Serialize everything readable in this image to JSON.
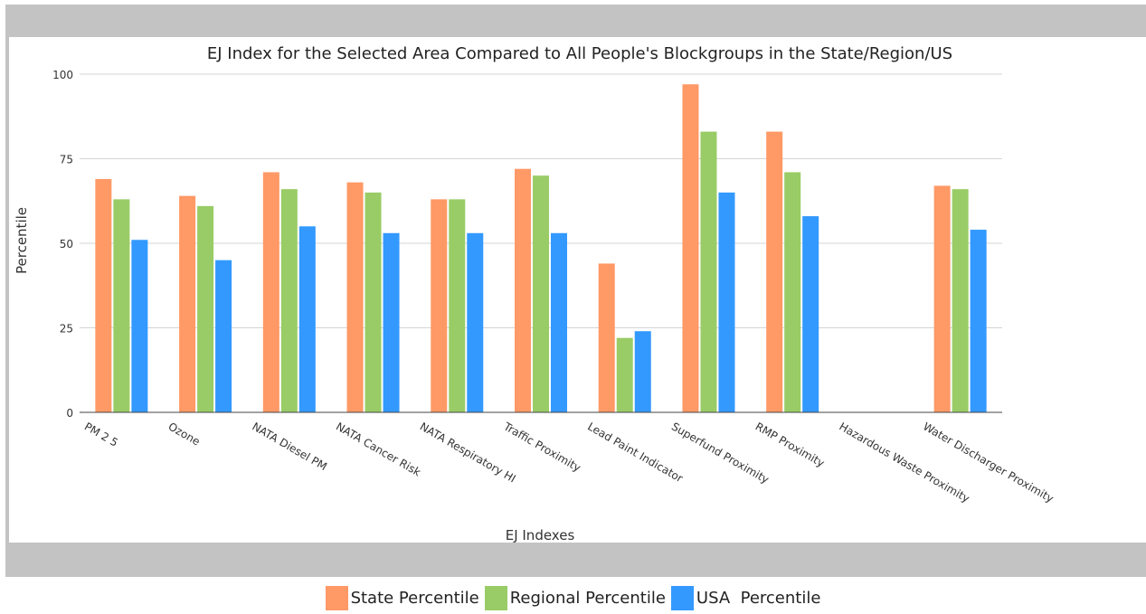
{
  "chart_data": {
    "type": "bar",
    "title": "EJ Index for the Selected Area Compared to All People's Blockgroups in the State/Region/US",
    "xlabel": "EJ Indexes",
    "ylabel": "Percentile",
    "ylim": [
      0,
      100
    ],
    "yticks": [
      0,
      25,
      50,
      75,
      100
    ],
    "grid": true,
    "legend_position": "bottom",
    "categories": [
      "PM 2 5",
      "Ozone",
      "NATA Diesel PM",
      "NATA Cancer Risk",
      "NATA Respiratory HI",
      "Traffic Proximity",
      "Lead Paint Indicator",
      "Superfund Proximity",
      "RMP Proximity",
      "Hazardous Waste Proximity",
      "Water Discharger Proximity"
    ],
    "series": [
      {
        "name": "State Percentile",
        "color": "#ff9966",
        "values": [
          69,
          64,
          71,
          68,
          63,
          72,
          44,
          97,
          83,
          null,
          67
        ]
      },
      {
        "name": "Regional Percentile",
        "color": "#99cc66",
        "values": [
          63,
          61,
          66,
          65,
          63,
          70,
          22,
          83,
          71,
          null,
          66
        ]
      },
      {
        "name": "USA  Percentile",
        "color": "#3399ff",
        "values": [
          51,
          45,
          55,
          53,
          53,
          53,
          24,
          65,
          58,
          null,
          54
        ]
      }
    ]
  }
}
